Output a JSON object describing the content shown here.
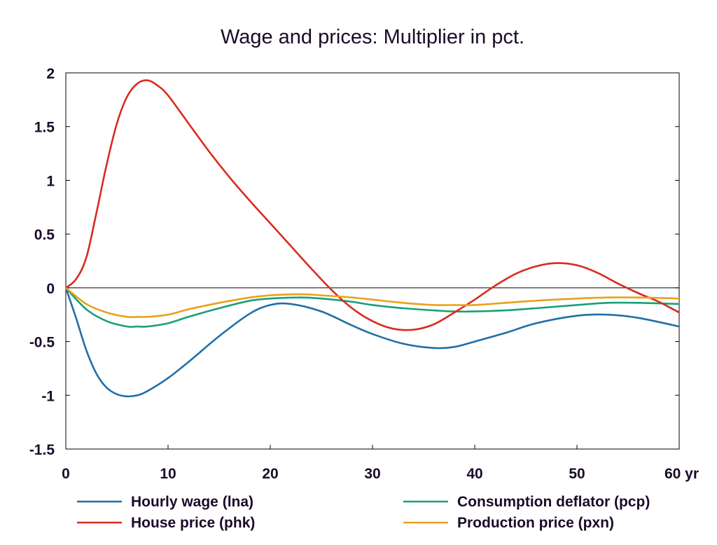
{
  "chart_data": {
    "type": "line",
    "title": "Wage and prices: Multiplier in pct.",
    "xlabel": "",
    "ylabel": "",
    "x_unit": "yr",
    "xlim": [
      0,
      60
    ],
    "ylim": [
      -1.5,
      2
    ],
    "x_ticks": [
      0,
      10,
      20,
      30,
      40,
      50,
      60
    ],
    "x_tick_labels": [
      "0",
      "10",
      "20",
      "30",
      "40",
      "50",
      "60 yr"
    ],
    "y_ticks": [
      -1.5,
      -1,
      -0.5,
      0,
      0.5,
      1,
      1.5,
      2
    ],
    "y_tick_labels": [
      "-1.5",
      "-1",
      "-0.5",
      "0",
      "0.5",
      "1",
      "1.5",
      "2"
    ],
    "grid": false,
    "zero_line": true,
    "legend_position": "bottom",
    "series": [
      {
        "name": "Hourly wage (lna)",
        "color": "#1f6fa8",
        "x": [
          0,
          1,
          2,
          3,
          4,
          5,
          6,
          7,
          8,
          10,
          12,
          15,
          18,
          20,
          22,
          25,
          28,
          30,
          33,
          36,
          38,
          40,
          43,
          46,
          50,
          53,
          56,
          60
        ],
        "y": [
          0,
          -0.28,
          -0.58,
          -0.8,
          -0.93,
          -0.99,
          -1.01,
          -1.0,
          -0.96,
          -0.84,
          -0.69,
          -0.45,
          -0.24,
          -0.16,
          -0.15,
          -0.22,
          -0.35,
          -0.43,
          -0.52,
          -0.56,
          -0.55,
          -0.5,
          -0.42,
          -0.33,
          -0.26,
          -0.25,
          -0.28,
          -0.36
        ]
      },
      {
        "name": "Consumption deflator (pcp)",
        "color": "#18a07a",
        "x": [
          0,
          2,
          4,
          6,
          7,
          8,
          10,
          12,
          15,
          18,
          20,
          23,
          25,
          28,
          30,
          33,
          36,
          38,
          40,
          43,
          46,
          50,
          53,
          56,
          60
        ],
        "y": [
          0,
          -0.2,
          -0.31,
          -0.36,
          -0.36,
          -0.36,
          -0.33,
          -0.27,
          -0.19,
          -0.12,
          -0.1,
          -0.09,
          -0.1,
          -0.13,
          -0.16,
          -0.19,
          -0.21,
          -0.22,
          -0.22,
          -0.21,
          -0.19,
          -0.16,
          -0.14,
          -0.14,
          -0.15
        ]
      },
      {
        "name": "House price (phk)",
        "color": "#d92b1f",
        "x": [
          0,
          1,
          2,
          3,
          4,
          5,
          6,
          7,
          8,
          9,
          10,
          12,
          14,
          16,
          18,
          20,
          22,
          24,
          26,
          28,
          30,
          32,
          34,
          36,
          38,
          40,
          42,
          44,
          46,
          48,
          50,
          52,
          54,
          56,
          58,
          60
        ],
        "y": [
          0,
          0.08,
          0.28,
          0.7,
          1.15,
          1.53,
          1.78,
          1.9,
          1.93,
          1.88,
          1.79,
          1.53,
          1.27,
          1.03,
          0.81,
          0.6,
          0.39,
          0.18,
          -0.02,
          -0.19,
          -0.31,
          -0.38,
          -0.39,
          -0.34,
          -0.23,
          -0.11,
          0.02,
          0.13,
          0.2,
          0.23,
          0.21,
          0.14,
          0.04,
          -0.05,
          -0.13,
          -0.23
        ]
      },
      {
        "name": "Production price (pxn)",
        "color": "#e8a21a",
        "x": [
          0,
          2,
          4,
          6,
          7,
          8,
          10,
          12,
          15,
          18,
          20,
          23,
          25,
          28,
          30,
          33,
          36,
          38,
          40,
          43,
          46,
          50,
          53,
          56,
          60
        ],
        "y": [
          0,
          -0.15,
          -0.23,
          -0.27,
          -0.27,
          -0.27,
          -0.25,
          -0.2,
          -0.14,
          -0.09,
          -0.07,
          -0.06,
          -0.07,
          -0.09,
          -0.11,
          -0.14,
          -0.16,
          -0.16,
          -0.16,
          -0.14,
          -0.12,
          -0.1,
          -0.09,
          -0.09,
          -0.1
        ]
      }
    ]
  }
}
